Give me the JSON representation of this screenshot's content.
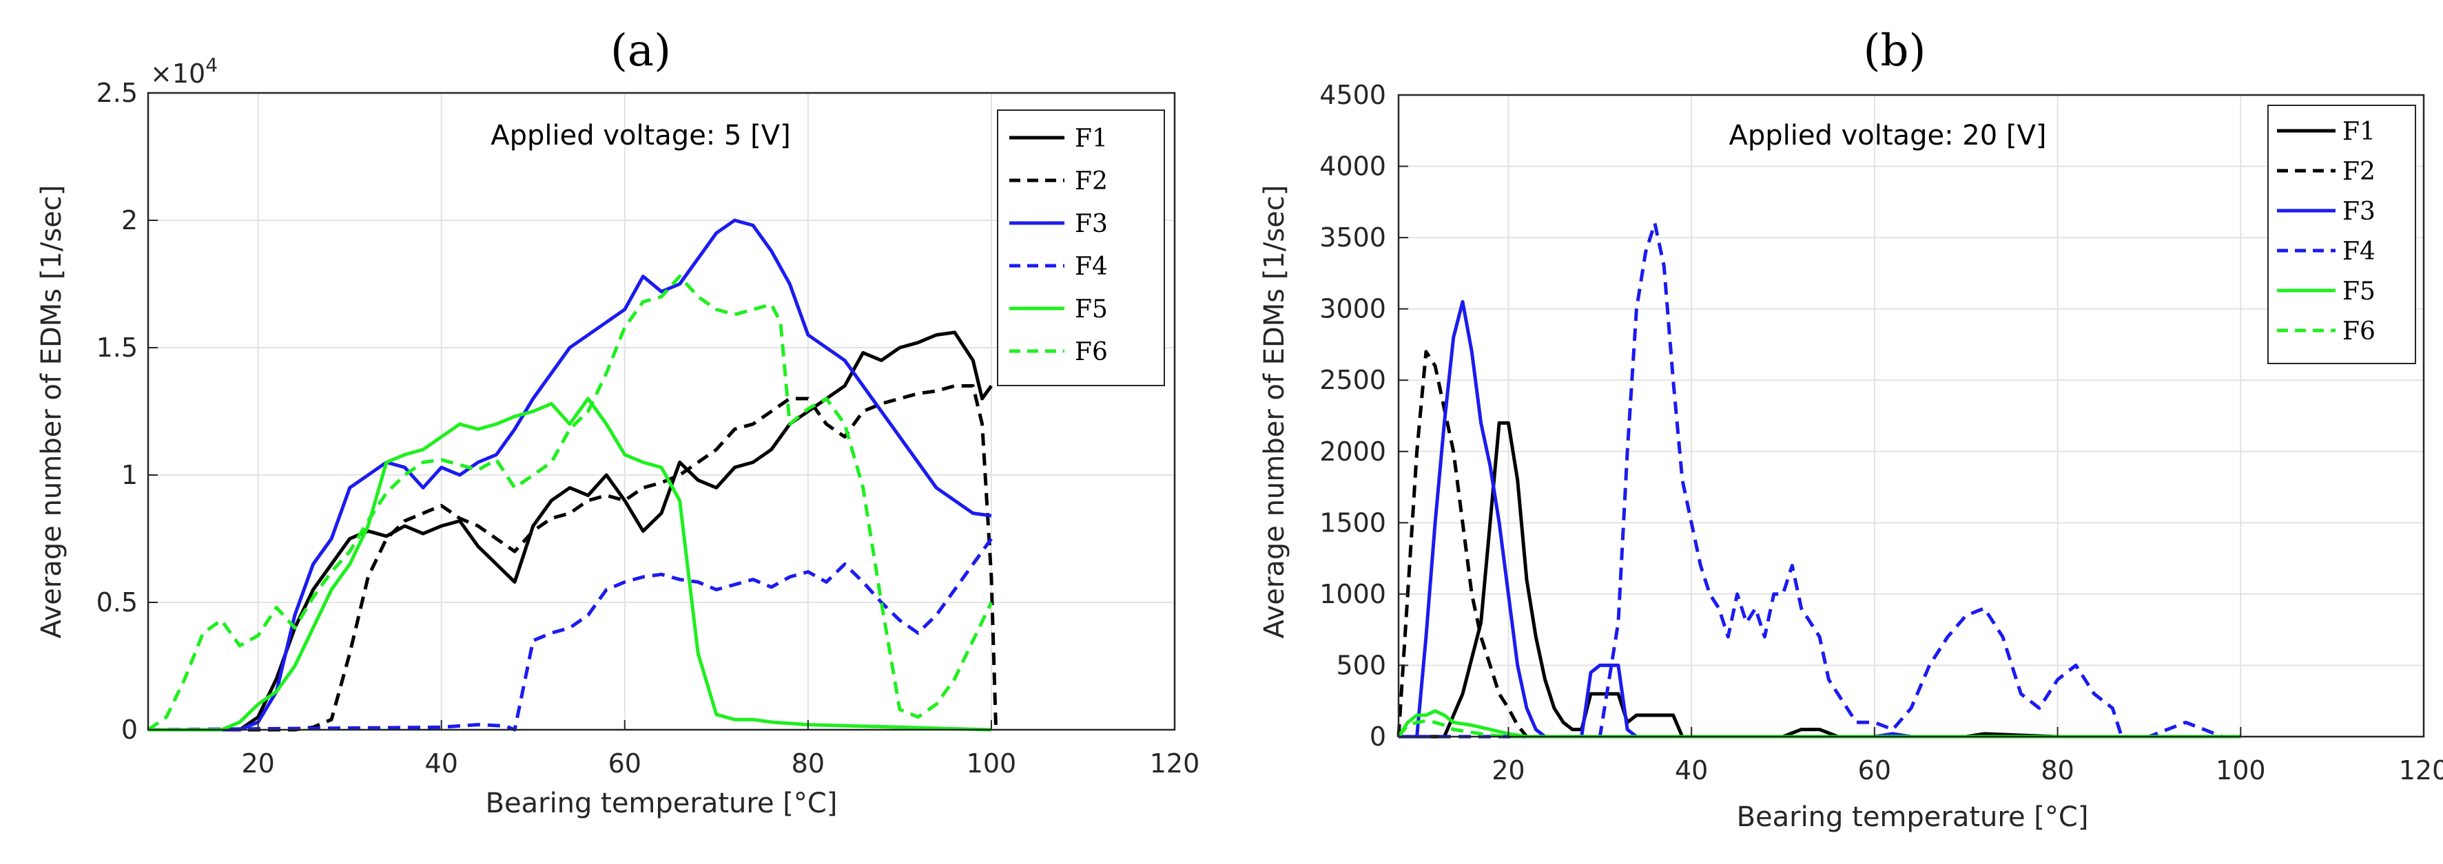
{
  "chart_data": [
    {
      "type": "line",
      "panel_label": "(a)",
      "annotation": "Applied voltage: 5 [V]",
      "xlabel": "Bearing temperature  [°C]",
      "ylabel": "Average number of EDMs [1/sec]",
      "xlim": [
        8,
        120
      ],
      "ylim": [
        0,
        25000
      ],
      "exponent_label": "×10",
      "exponent_power": "4",
      "xticks": [
        20,
        40,
        60,
        80,
        100,
        120
      ],
      "yticks": [
        0,
        5000,
        10000,
        15000,
        20000,
        25000
      ],
      "ytick_labels": [
        "0",
        "0.5",
        "1",
        "1.5",
        "2",
        "2.5"
      ],
      "grid": true,
      "legend_position": "top-right",
      "series": [
        {
          "name": "F1",
          "color": "#000000",
          "dash": "solid",
          "x": [
            8,
            18,
            20,
            22,
            24,
            26,
            28,
            30,
            32,
            34,
            36,
            38,
            40,
            42,
            44,
            46,
            48,
            50,
            52,
            54,
            56,
            58,
            60,
            62,
            64,
            66,
            68,
            70,
            72,
            74,
            76,
            78,
            80,
            82,
            84,
            86,
            88,
            90,
            92,
            94,
            96,
            98,
            99,
            100
          ],
          "y": [
            0,
            0,
            500,
            2000,
            4000,
            5500,
            6500,
            7500,
            7800,
            7600,
            8000,
            7700,
            8000,
            8200,
            7200,
            6500,
            5800,
            8000,
            9000,
            9500,
            9200,
            10000,
            9000,
            7800,
            8500,
            10500,
            9800,
            9500,
            10300,
            10500,
            11000,
            12000,
            12500,
            13000,
            13500,
            14800,
            14500,
            15000,
            15200,
            15500,
            15600,
            14500,
            13000,
            13500
          ]
        },
        {
          "name": "F2",
          "color": "#000000",
          "dash": "dashed",
          "x": [
            8,
            24,
            26,
            28,
            30,
            32,
            34,
            36,
            38,
            40,
            42,
            44,
            46,
            48,
            50,
            52,
            54,
            56,
            58,
            60,
            62,
            64,
            66,
            68,
            70,
            72,
            74,
            76,
            78,
            80,
            82,
            84,
            86,
            88,
            90,
            92,
            94,
            96,
            98,
            99,
            100,
            100.5
          ],
          "y": [
            0,
            0,
            100,
            400,
            3000,
            6000,
            7500,
            8200,
            8500,
            8800,
            8300,
            8000,
            7500,
            7000,
            7800,
            8300,
            8500,
            9000,
            9200,
            9000,
            9500,
            9700,
            10000,
            10500,
            11000,
            11800,
            12000,
            12500,
            13000,
            13000,
            12000,
            11500,
            12500,
            12800,
            13000,
            13200,
            13300,
            13500,
            13500,
            12000,
            6000,
            0
          ]
        },
        {
          "name": "F3",
          "color": "#1b1bf0",
          "dash": "solid",
          "x": [
            8,
            18,
            20,
            22,
            24,
            26,
            28,
            30,
            32,
            34,
            36,
            38,
            40,
            42,
            44,
            46,
            48,
            50,
            52,
            54,
            56,
            58,
            60,
            62,
            64,
            66,
            68,
            70,
            72,
            74,
            76,
            78,
            80,
            82,
            84,
            86,
            88,
            90,
            92,
            94,
            96,
            98,
            100
          ],
          "y": [
            0,
            0,
            300,
            1500,
            4500,
            6500,
            7500,
            9500,
            10000,
            10500,
            10300,
            9500,
            10300,
            10000,
            10500,
            10800,
            11800,
            13000,
            14000,
            15000,
            15500,
            16000,
            16500,
            17800,
            17200,
            17500,
            18500,
            19500,
            20000,
            19800,
            18800,
            17500,
            15500,
            15000,
            14500,
            13500,
            12500,
            11500,
            10500,
            9500,
            9000,
            8500,
            8400
          ]
        },
        {
          "name": "F4",
          "color": "#1b1bf0",
          "dash": "dashed",
          "x": [
            8,
            40,
            44,
            47,
            48,
            50,
            52,
            54,
            56,
            58,
            60,
            62,
            64,
            66,
            68,
            70,
            72,
            74,
            76,
            78,
            80,
            82,
            84,
            86,
            88,
            90,
            92,
            94,
            96,
            98,
            100
          ],
          "y": [
            0,
            100,
            200,
            150,
            0,
            3500,
            3800,
            4000,
            4500,
            5500,
            5800,
            6000,
            6100,
            5900,
            5800,
            5500,
            5700,
            5900,
            5600,
            6000,
            6200,
            5800,
            6500,
            5800,
            5000,
            4300,
            3800,
            4500,
            5500,
            6500,
            7500
          ]
        },
        {
          "name": "F5",
          "color": "#1fef1f",
          "dash": "solid",
          "x": [
            8,
            16,
            18,
            20,
            22,
            24,
            26,
            28,
            30,
            32,
            34,
            36,
            38,
            40,
            42,
            44,
            46,
            48,
            50,
            52,
            54,
            56,
            58,
            60,
            62,
            64,
            66,
            67,
            68,
            70,
            72,
            74,
            76,
            80,
            90,
            100
          ],
          "y": [
            0,
            0,
            300,
            1000,
            1500,
            2500,
            4000,
            5500,
            6500,
            8000,
            10500,
            10800,
            11000,
            11500,
            12000,
            11800,
            12000,
            12300,
            12500,
            12800,
            12000,
            13000,
            12000,
            10800,
            10500,
            10300,
            9000,
            6000,
            3000,
            600,
            400,
            400,
            300,
            200,
            100,
            0
          ]
        },
        {
          "name": "F6",
          "color": "#1fef1f",
          "dash": "dashed",
          "x": [
            8,
            10,
            12,
            14,
            16,
            18,
            20,
            22,
            24,
            26,
            28,
            30,
            32,
            34,
            36,
            38,
            40,
            42,
            44,
            46,
            48,
            50,
            52,
            54,
            56,
            58,
            60,
            62,
            64,
            66,
            68,
            70,
            72,
            74,
            76,
            77,
            78,
            80,
            82,
            84,
            86,
            88,
            90,
            92,
            94,
            96,
            98,
            100
          ],
          "y": [
            0,
            500,
            2000,
            3800,
            4300,
            3300,
            3700,
            4800,
            4000,
            5200,
            6200,
            7000,
            8200,
            9300,
            10000,
            10500,
            10600,
            10400,
            10200,
            10600,
            9500,
            10000,
            10500,
            11800,
            12500,
            14000,
            15800,
            16800,
            17000,
            17800,
            17000,
            16500,
            16300,
            16500,
            16700,
            16000,
            12000,
            12600,
            13000,
            12000,
            9500,
            5000,
            800,
            500,
            1000,
            2000,
            3500,
            5000
          ]
        }
      ]
    },
    {
      "type": "line",
      "panel_label": "(b)",
      "annotation": "Applied voltage: 20 [V]",
      "xlabel": "Bearing temperature  [°C]",
      "ylabel": "Average number of EDMs [1/sec]",
      "xlim": [
        8,
        120
      ],
      "ylim": [
        0,
        4500
      ],
      "xticks": [
        20,
        40,
        60,
        80,
        100,
        120
      ],
      "yticks": [
        0,
        500,
        1000,
        1500,
        2000,
        2500,
        3000,
        3500,
        4000,
        4500
      ],
      "ytick_labels": [
        "0",
        "500",
        "1000",
        "1500",
        "2000",
        "2500",
        "3000",
        "3500",
        "4000",
        "4500"
      ],
      "grid": true,
      "legend_position": "top-right",
      "series": [
        {
          "name": "F1",
          "color": "#000000",
          "dash": "solid",
          "x": [
            8,
            13,
            15,
            17,
            18,
            19,
            20,
            21,
            22,
            23,
            24,
            25,
            26,
            27,
            28,
            29,
            30,
            31,
            32,
            33,
            34,
            35,
            36,
            37,
            38,
            39,
            40,
            50,
            52,
            54,
            56,
            60,
            66,
            70,
            72,
            80,
            100
          ],
          "y": [
            0,
            0,
            300,
            800,
            1500,
            2200,
            2200,
            1800,
            1100,
            700,
            400,
            200,
            100,
            50,
            50,
            300,
            300,
            300,
            300,
            100,
            150,
            150,
            150,
            150,
            150,
            0,
            0,
            0,
            50,
            50,
            0,
            0,
            0,
            0,
            20,
            0,
            0
          ]
        },
        {
          "name": "F2",
          "color": "#000000",
          "dash": "dashed",
          "x": [
            8,
            9,
            10,
            11,
            12,
            13,
            14,
            15,
            16,
            17,
            18,
            19,
            20,
            21,
            22,
            24,
            30,
            40,
            100
          ],
          "y": [
            0,
            1000,
            2000,
            2700,
            2600,
            2300,
            2000,
            1500,
            1000,
            700,
            500,
            300,
            200,
            80,
            0,
            0,
            0,
            0,
            0
          ]
        },
        {
          "name": "F3",
          "color": "#1b1bf0",
          "dash": "solid",
          "x": [
            8,
            10,
            11,
            12,
            13,
            14,
            15,
            16,
            17,
            18,
            19,
            20,
            21,
            22,
            23,
            24,
            28,
            29,
            30,
            31,
            32,
            33,
            34,
            35,
            40,
            60,
            62,
            64,
            100
          ],
          "y": [
            0,
            0,
            700,
            1500,
            2200,
            2800,
            3050,
            2700,
            2200,
            1900,
            1500,
            1000,
            500,
            200,
            50,
            0,
            0,
            450,
            500,
            500,
            500,
            50,
            0,
            0,
            0,
            0,
            20,
            0,
            0
          ]
        },
        {
          "name": "F4",
          "color": "#1b1bf0",
          "dash": "dashed",
          "x": [
            8,
            30,
            32,
            33,
            34,
            35,
            36,
            37,
            38,
            39,
            40,
            41,
            42,
            43,
            44,
            45,
            46,
            47,
            48,
            49,
            50,
            51,
            52,
            53,
            54,
            55,
            56,
            57,
            58,
            60,
            62,
            64,
            66,
            68,
            70,
            72,
            74,
            76,
            78,
            80,
            82,
            84,
            86,
            87,
            90,
            92,
            94,
            96,
            98,
            100
          ],
          "y": [
            0,
            0,
            800,
            2000,
            3000,
            3400,
            3600,
            3300,
            2500,
            1800,
            1500,
            1200,
            1000,
            900,
            700,
            1000,
            800,
            900,
            700,
            1000,
            1000,
            1200,
            900,
            800,
            700,
            400,
            300,
            200,
            100,
            100,
            50,
            200,
            500,
            700,
            850,
            900,
            700,
            300,
            200,
            400,
            500,
            300,
            200,
            0,
            0,
            50,
            100,
            50,
            0,
            0
          ]
        },
        {
          "name": "F5",
          "color": "#1fef1f",
          "dash": "solid",
          "x": [
            8,
            9,
            10,
            11,
            12,
            13,
            14,
            16,
            18,
            20,
            22,
            24,
            30,
            40,
            60,
            80,
            100
          ],
          "y": [
            0,
            100,
            150,
            150,
            180,
            150,
            100,
            80,
            50,
            20,
            0,
            0,
            0,
            0,
            0,
            0,
            0
          ]
        },
        {
          "name": "F6",
          "color": "#1fef1f",
          "dash": "dashed",
          "x": [
            8,
            9,
            10,
            11,
            12,
            13,
            14,
            16,
            18,
            20,
            24,
            30,
            40,
            60,
            80,
            100
          ],
          "y": [
            0,
            80,
            100,
            110,
            100,
            80,
            50,
            30,
            10,
            0,
            0,
            0,
            0,
            0,
            0,
            0
          ]
        }
      ]
    }
  ]
}
